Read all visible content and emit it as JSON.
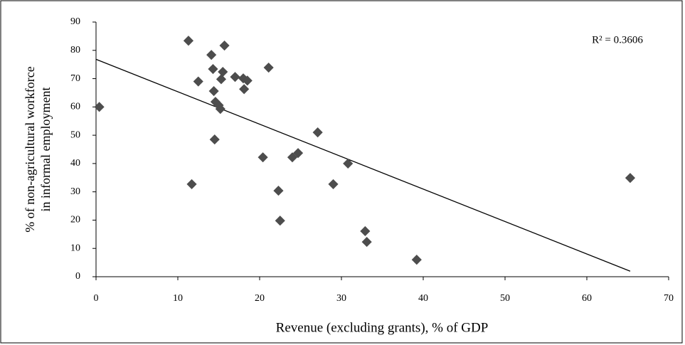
{
  "chart_data": {
    "type": "scatter",
    "x_label": "Revenue (excluding grants), % of GDP",
    "y_label": [
      "% of non-agricultural workforce",
      "in informal employment"
    ],
    "annotation": "R² = 0.3606",
    "color": "#4d4d4d",
    "trendline": true,
    "x": [
      0.4,
      11.3,
      15.7,
      11.7,
      12.5,
      14.1,
      14.3,
      14.4,
      14.6,
      15.0,
      15.2,
      14.5,
      15.5,
      15.3,
      17.0,
      18.0,
      18.1,
      18.5,
      21.1,
      20.4,
      22.3,
      22.5,
      24.0,
      24.7,
      27.1,
      29.0,
      30.8,
      32.9,
      33.1,
      39.2,
      65.3
    ],
    "y": [
      60.0,
      83.4,
      81.7,
      32.7,
      69.0,
      78.4,
      73.4,
      65.6,
      61.8,
      60.6,
      59.3,
      48.5,
      72.4,
      69.8,
      70.6,
      70.1,
      66.3,
      69.3,
      73.9,
      42.2,
      30.4,
      19.8,
      42.2,
      43.7,
      51.0,
      32.7,
      40.0,
      16.1,
      12.3,
      6.0,
      34.9
    ],
    "xlim": [
      0,
      70
    ],
    "xticks": [
      0,
      10,
      20,
      30,
      40,
      50,
      60,
      70
    ],
    "ylim": [
      0,
      90
    ],
    "yticks": [
      0,
      10,
      20,
      30,
      40,
      50,
      60,
      70,
      80,
      90
    ]
  }
}
